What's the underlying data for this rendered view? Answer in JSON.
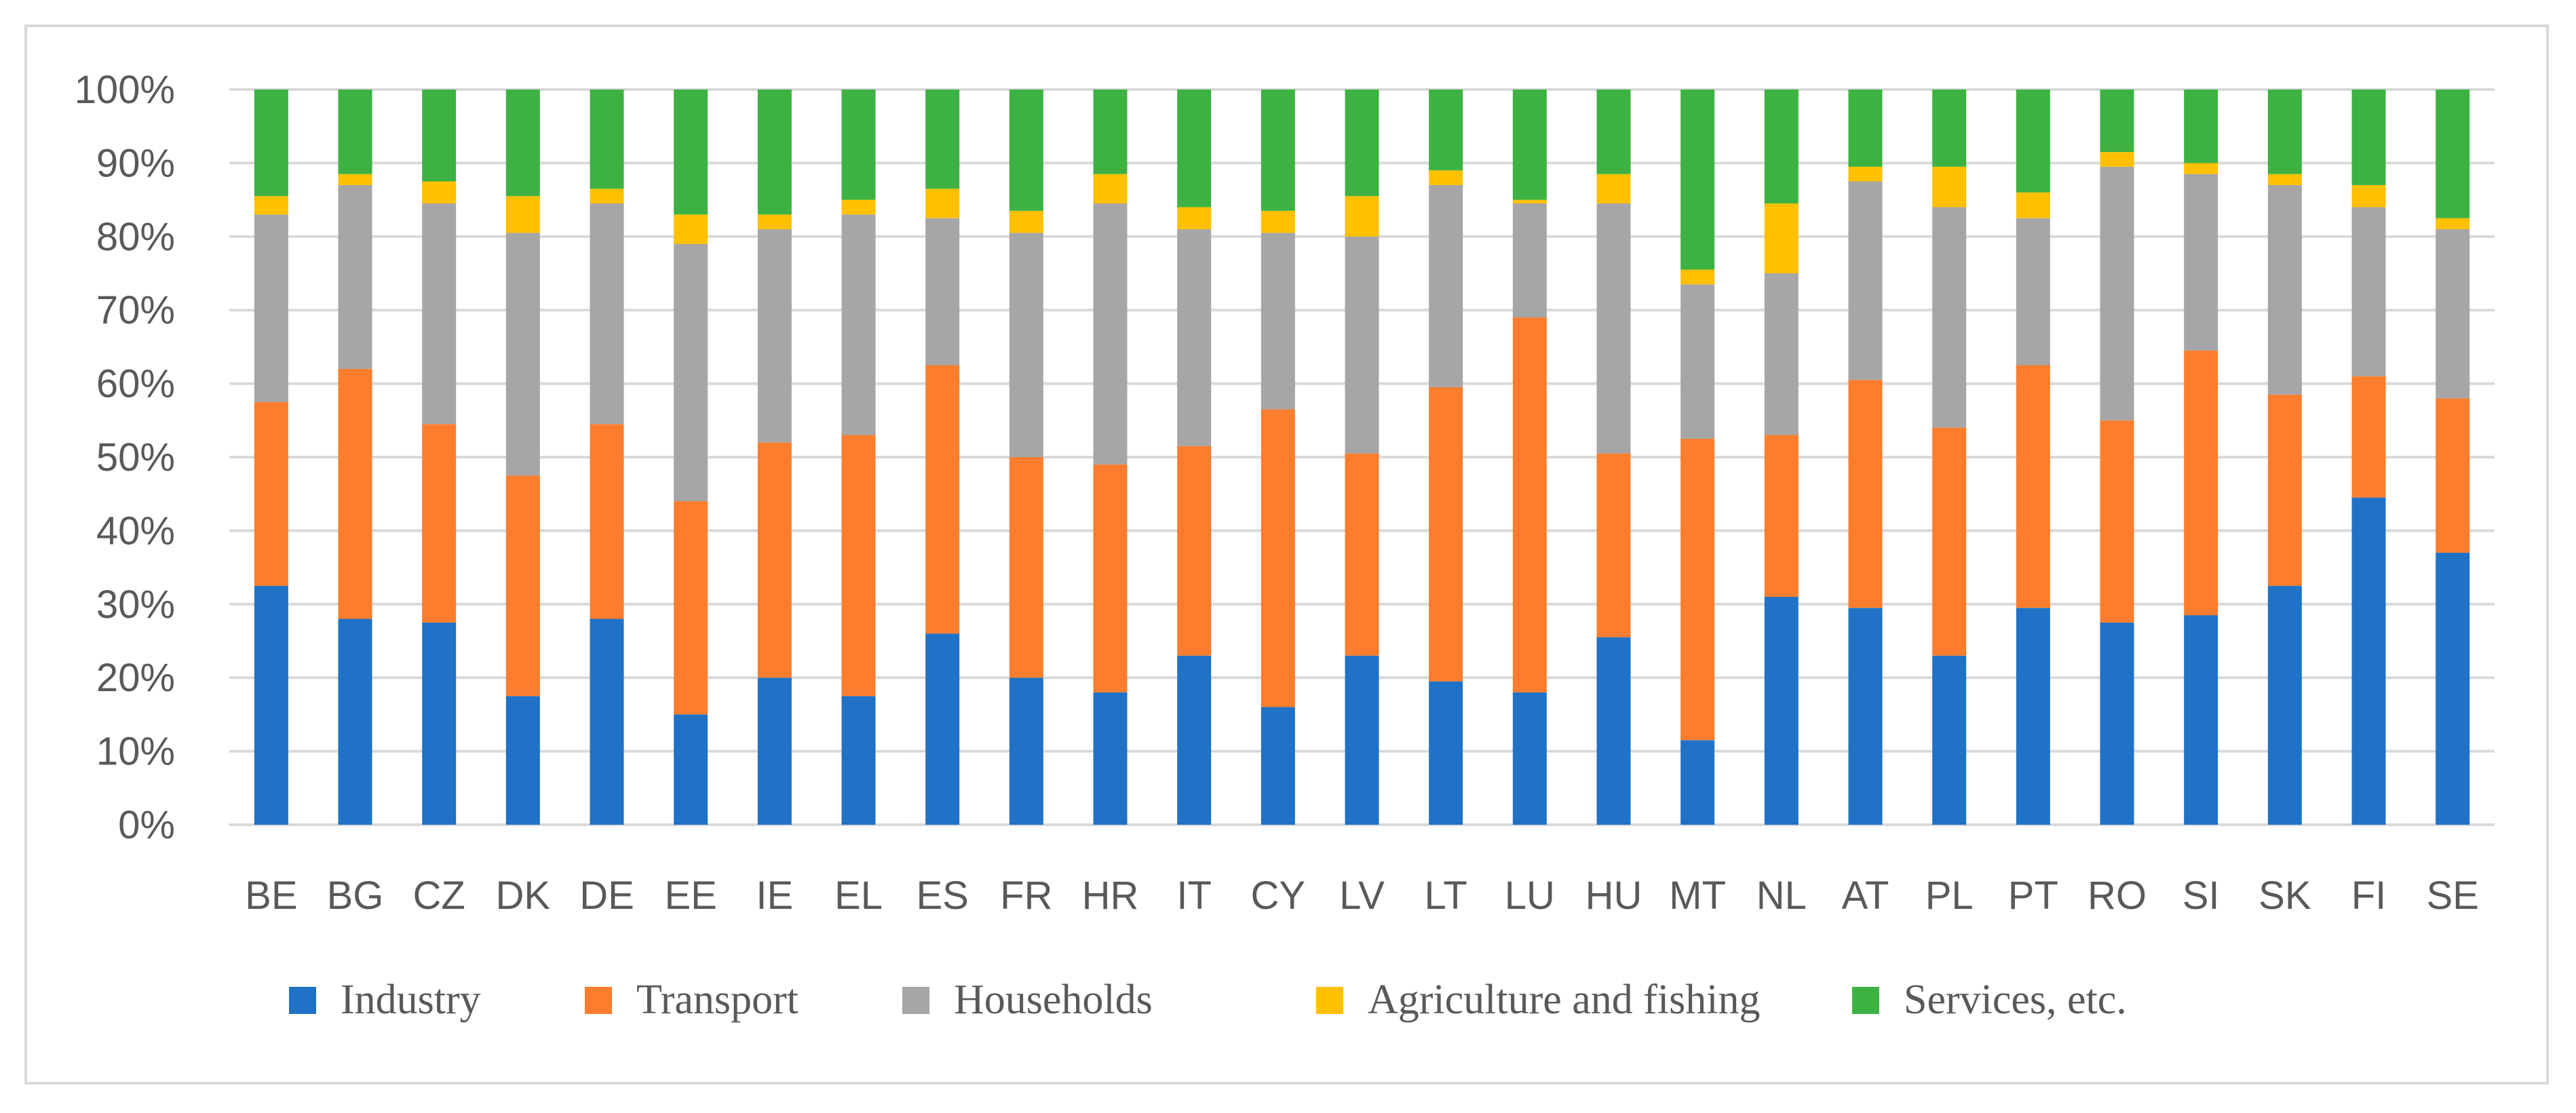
{
  "chart_data": {
    "type": "bar",
    "stacked": true,
    "percent": true,
    "title": "",
    "xlabel": "",
    "ylabel": "",
    "ylim": [
      0,
      100
    ],
    "y_ticks": [
      "0%",
      "10%",
      "20%",
      "30%",
      "40%",
      "50%",
      "60%",
      "70%",
      "80%",
      "90%",
      "100%"
    ],
    "grid": true,
    "legend_position": "bottom",
    "categories": [
      "BE",
      "BG",
      "CZ",
      "DK",
      "DE",
      "EE",
      "IE",
      "EL",
      "ES",
      "FR",
      "HR",
      "IT",
      "CY",
      "LV",
      "LT",
      "LU",
      "HU",
      "MT",
      "NL",
      "AT",
      "PL",
      "PT",
      "RO",
      "SI",
      "SK",
      "FI",
      "SE"
    ],
    "series": [
      {
        "name": "Industry",
        "color": "#1f72c6",
        "values": [
          32.5,
          28,
          27.5,
          17.5,
          28,
          15,
          20,
          17.5,
          26,
          20,
          18,
          23,
          16,
          23,
          19.5,
          18,
          25.5,
          11.5,
          31,
          29.5,
          23,
          29.5,
          27.5,
          28.5,
          32.5,
          44.5,
          37
        ]
      },
      {
        "name": "Transport",
        "color": "#fb7d2d",
        "values": [
          25,
          34,
          27,
          30,
          26.5,
          29,
          32,
          35.5,
          36.5,
          30,
          31,
          28.5,
          40.5,
          27.5,
          40,
          51,
          25,
          41,
          22,
          31,
          31,
          33,
          27.5,
          36,
          26,
          16.5,
          21
        ]
      },
      {
        "name": "Households",
        "color": "#a6a6a6",
        "values": [
          25.5,
          25,
          30,
          33,
          30,
          35,
          29,
          30,
          20,
          30.5,
          35.5,
          29.5,
          24,
          29.5,
          27.5,
          15.5,
          34,
          21,
          22,
          27,
          30,
          20,
          34.5,
          24,
          28.5,
          23,
          23
        ]
      },
      {
        "name": "Agriculture and fishing",
        "color": "#ffc000",
        "values": [
          2.5,
          1.5,
          3,
          5,
          2,
          4,
          2,
          2,
          4,
          3,
          4,
          3,
          3,
          5.5,
          2,
          0.5,
          4,
          2,
          9.5,
          2,
          5.5,
          3.5,
          2,
          1.5,
          1.5,
          3,
          1.5
        ]
      },
      {
        "name": "Services, etc.",
        "color": "#3db242",
        "values": [
          14.5,
          11.5,
          12.5,
          14.5,
          13.5,
          17,
          17,
          15,
          13.5,
          16.5,
          11.5,
          16,
          16.5,
          14.5,
          11,
          15,
          11.5,
          24.5,
          15.5,
          10.5,
          10.5,
          14,
          8.5,
          10,
          11.5,
          13,
          17.5
        ]
      }
    ]
  }
}
